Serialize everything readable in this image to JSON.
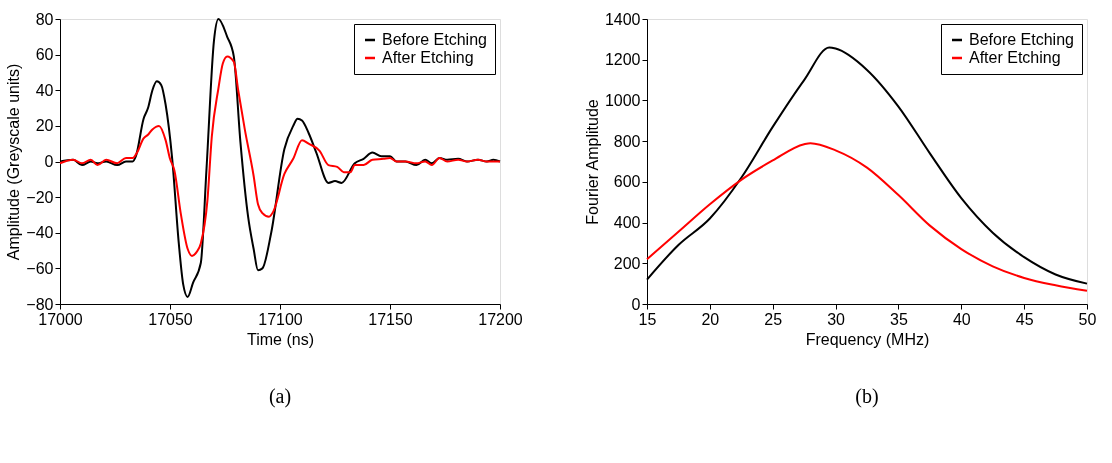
{
  "chart_data": [
    {
      "type": "line",
      "xlabel": "Time (ns)",
      "ylabel": "Amplitude (Greyscale units)",
      "xlim": [
        17000,
        17200
      ],
      "xticks": [
        17000,
        17050,
        17100,
        17150,
        17200
      ],
      "ylim": [
        -80,
        80
      ],
      "yticks": [
        -80,
        -60,
        -40,
        -20,
        0,
        20,
        40,
        60,
        80
      ],
      "grid": false,
      "legend": "top right",
      "marker": "none",
      "line_style": "solid",
      "annotations": [
        "(a)"
      ],
      "series": [
        {
          "name": "Before Etching",
          "color": "#000000",
          "x": [
            17000,
            17006,
            17010,
            17014,
            17017,
            17021,
            17026,
            17030,
            17033,
            17034.5,
            17038,
            17040,
            17042,
            17044,
            17046,
            17048,
            17051,
            17054,
            17056,
            17058,
            17060.5,
            17064,
            17066.6,
            17070,
            17072,
            17076,
            17079,
            17082,
            17085.5,
            17088,
            17090,
            17092,
            17096,
            17102,
            17106,
            17108,
            17110,
            17113,
            17116.5,
            17122,
            17125,
            17128,
            17134,
            17138,
            17142,
            17146,
            17150,
            17153,
            17157,
            17162,
            17166,
            17169,
            17172.5,
            17176,
            17181,
            17185,
            17190,
            17194,
            17197,
            17200
          ],
          "values": [
            0,
            1,
            -2,
            0,
            -1,
            0,
            -2,
            0,
            0,
            3,
            24,
            30,
            40,
            45,
            43,
            32,
            1.5,
            -46,
            -69,
            -76,
            -68,
            -57,
            -4,
            68,
            80,
            70,
            59,
            11,
            -31,
            -49,
            -61,
            -60,
            -40,
            7,
            20,
            24,
            23,
            16,
            5,
            -12,
            -11,
            -12,
            -1,
            1.5,
            5,
            3,
            3,
            0,
            0,
            -2,
            1,
            -1,
            2,
            1,
            1.5,
            0,
            1,
            0,
            1,
            0
          ]
        },
        {
          "name": "After Etching",
          "color": "#ff0000",
          "x": [
            17000,
            17006,
            17010,
            17014,
            17017,
            17021,
            17026,
            17030,
            17033,
            17035,
            17038,
            17040,
            17042,
            17045,
            17048,
            17050,
            17052,
            17055,
            17058,
            17060,
            17062,
            17064,
            17067,
            17069,
            17072,
            17074,
            17076,
            17079,
            17081,
            17084,
            17088,
            17090,
            17092,
            17095,
            17097,
            17102,
            17106,
            17110,
            17113,
            17118,
            17122,
            17126,
            17129,
            17132,
            17134,
            17138,
            17142,
            17147,
            17150,
            17153,
            17157,
            17162,
            17166,
            17169,
            17172.5,
            17176,
            17181,
            17185,
            17190,
            17194,
            17200
          ],
          "values": [
            -1,
            1,
            -1,
            1,
            -2,
            1,
            -1,
            2,
            2,
            5,
            13,
            15,
            18,
            20,
            12,
            1.5,
            -5,
            -30,
            -49,
            -53,
            -51,
            -46,
            -22,
            14,
            41,
            55,
            59,
            56,
            40,
            18,
            -8,
            -24,
            -29,
            -31,
            -28,
            -7,
            1.5,
            12,
            10,
            6,
            -2,
            -3,
            -6,
            -6,
            -2,
            -2,
            1,
            1.5,
            2,
            0,
            0,
            -1,
            0,
            -2,
            2,
            0,
            1,
            0,
            1,
            0,
            0
          ]
        }
      ]
    },
    {
      "type": "line",
      "xlabel": "Frequency (MHz)",
      "ylabel": "Fourier Amplitude",
      "xlim": [
        15,
        50
      ],
      "xticks": [
        15,
        20,
        25,
        30,
        35,
        40,
        45,
        50
      ],
      "ylim": [
        0,
        1400
      ],
      "yticks": [
        0,
        200,
        400,
        600,
        800,
        1000,
        1200,
        1400
      ],
      "grid": false,
      "legend": "top right",
      "marker": "none",
      "line_style": "solid",
      "annotations": [
        "(b)"
      ],
      "series": [
        {
          "name": "Before Etching",
          "color": "#000000",
          "x": [
            15,
            17.5,
            20,
            22.5,
            25,
            27.5,
            29.5,
            30,
            32.5,
            35,
            37.5,
            40,
            42.5,
            45,
            47.5,
            50
          ],
          "values": [
            120,
            290,
            420,
            620,
            870,
            1100,
            1260,
            1255,
            1150,
            970,
            740,
            520,
            350,
            230,
            145,
            100
          ]
        },
        {
          "name": "After Etching",
          "color": "#ff0000",
          "x": [
            15,
            17.5,
            20,
            22.5,
            25,
            27.5,
            28,
            30,
            32.5,
            35,
            37.5,
            40,
            42.5,
            45,
            47.5,
            50
          ],
          "values": [
            220,
            355,
            490,
            610,
            705,
            785,
            790,
            755,
            670,
            535,
            385,
            270,
            185,
            128,
            92,
            65
          ]
        }
      ]
    }
  ]
}
